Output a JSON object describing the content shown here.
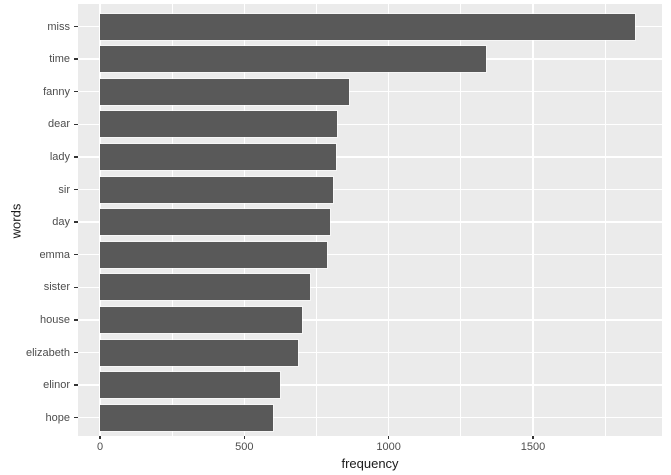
{
  "chart_data": {
    "type": "bar",
    "orientation": "horizontal",
    "title": "",
    "xlabel": "frequency",
    "ylabel": "words",
    "categories": [
      "miss",
      "time",
      "fanny",
      "dear",
      "lady",
      "sir",
      "day",
      "emma",
      "sister",
      "house",
      "elizabeth",
      "elinor",
      "hope"
    ],
    "values": [
      1855,
      1337,
      862,
      822,
      817,
      806,
      797,
      787,
      727,
      699,
      687,
      623,
      601
    ],
    "x_major_ticks": [
      0,
      500,
      1000,
      1500
    ],
    "x_minor_ticks": [
      250,
      750,
      1250,
      1750
    ],
    "xlim": [
      -93,
      1948
    ],
    "grid": true,
    "legend_position": "none",
    "theme": "ggplot-grey",
    "colors": {
      "bar_fill": "#595959",
      "panel_bg": "#EBEBEB",
      "grid_major": "#FFFFFF",
      "grid_minor": "#FFFFFF",
      "axis_text": "#4D4D4D",
      "axis_title": "#1A1A1A",
      "tick_mark": "#333333"
    }
  }
}
